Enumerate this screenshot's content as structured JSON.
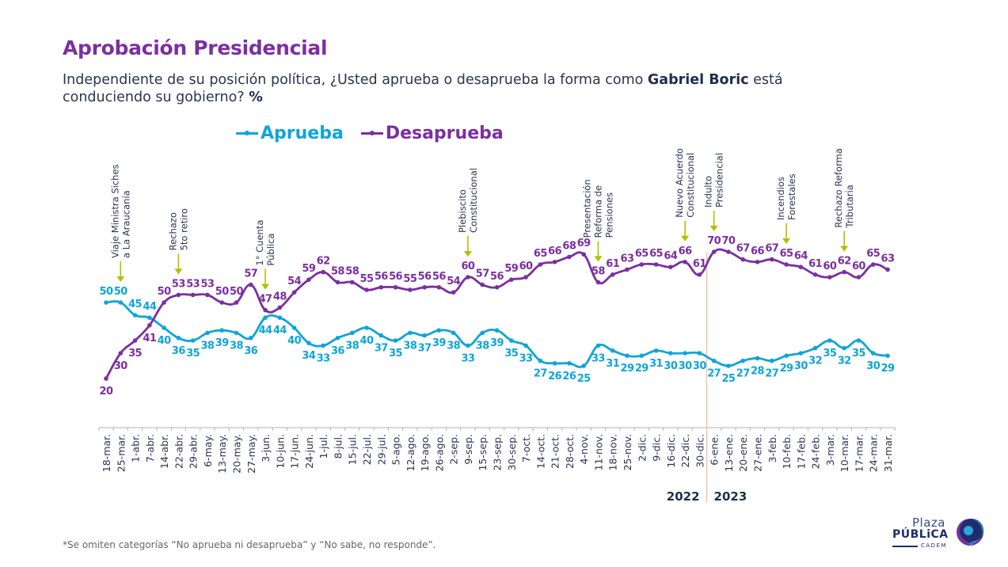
{
  "header": {
    "title": "Aprobación Presidencial",
    "question_part1": "Independiente de su posición política, ¿Usted aprueba o desaprueba la forma como ",
    "question_bold": "Gabriel Boric",
    "question_part2": " está conduciendo su gobierno? ",
    "question_unit": "%"
  },
  "footnote": "*Se omiten categorías “No aprueba ni desaprueba” y “No sabe, no responde”.",
  "logo": {
    "line1": "Plaza",
    "line2": "PÚBLiCA",
    "line3": "CADEM"
  },
  "colors": {
    "aprueba": "#0ea5d9",
    "desaprueba": "#7b2fa0",
    "event_arrow": "#b5bd00",
    "divider": "#f5b89a",
    "axis": "#b0b0b0",
    "year_label": "#1f2d52"
  },
  "chart_data": {
    "type": "line",
    "title": "Aprobación Presidencial",
    "xlabel": "",
    "ylabel": "%",
    "ylim": [
      0,
      80
    ],
    "grid": false,
    "legend_position": "top-center",
    "categories": [
      "18-mar.",
      "25-mar.",
      "1-abr.",
      "7-abr.",
      "14-abr.",
      "22-abr.",
      "29-abr.",
      "6-may.",
      "13-may.",
      "20-may.",
      "27-may.",
      "3-jun.",
      "10-jun.",
      "17-jun.",
      "24-jun.",
      "1-jul.",
      "8-jul.",
      "15-jul.",
      "22-jul.",
      "29-jul.",
      "5-ago.",
      "12-ago.",
      "19-ago.",
      "26-ago.",
      "2-sep.",
      "9-sep.",
      "15-sep.",
      "23-sep.",
      "30-sep.",
      "7-oct.",
      "14-oct.",
      "21-oct.",
      "28-oct.",
      "4-nov.",
      "11-nov.",
      "18-nov.",
      "25-nov.",
      "2-dic.",
      "9-dic.",
      "16-dic.",
      "22-dic.",
      "30-dic.",
      "6-ene.",
      "13-ene.",
      "20-ene.",
      "27-ene.",
      "3-feb.",
      "10-feb.",
      "17-feb.",
      "24-feb.",
      "3-mar.",
      "10-mar.",
      "17-mar.",
      "24-mar.",
      "31-mar."
    ],
    "series": [
      {
        "name": "Aprueba",
        "values": [
          50,
          50,
          45,
          44,
          40,
          36,
          35,
          38,
          39,
          38,
          36,
          44,
          44,
          40,
          34,
          33,
          36,
          38,
          40,
          37,
          35,
          38,
          37,
          39,
          38,
          33,
          38,
          39,
          35,
          33,
          27,
          26,
          26,
          25,
          33,
          31,
          29,
          29,
          31,
          30,
          30,
          30,
          27,
          25,
          27,
          28,
          27,
          29,
          30,
          32,
          35,
          32,
          35,
          30,
          29
        ]
      },
      {
        "name": "Desaprueba",
        "values": [
          20,
          30,
          35,
          41,
          50,
          53,
          53,
          53,
          50,
          50,
          57,
          47,
          48,
          54,
          59,
          62,
          58,
          58,
          55,
          56,
          56,
          55,
          56,
          56,
          54,
          60,
          57,
          56,
          59,
          60,
          65,
          66,
          68,
          69,
          58,
          61,
          63,
          65,
          65,
          64,
          66,
          61,
          70,
          70,
          67,
          66,
          67,
          65,
          64,
          61,
          60,
          62,
          60,
          65,
          63
        ]
      }
    ],
    "year_labels": [
      {
        "label": "2022",
        "span_end_index": 41
      },
      {
        "label": "2023",
        "span_start_index": 42
      }
    ],
    "annotations": [
      {
        "index": 1,
        "lines": [
          "Viaje Ministra Siches",
          "a La Araucanía"
        ]
      },
      {
        "index": 5,
        "lines": [
          "Rechazo",
          "5to retiro"
        ]
      },
      {
        "index": 11,
        "lines": [
          "1° Cuenta",
          "Pública"
        ]
      },
      {
        "index": 25,
        "lines": [
          "Plebiscito",
          "Constitucional"
        ]
      },
      {
        "index": 34,
        "lines": [
          "Presentación",
          "Reforma de",
          "Pensiones"
        ]
      },
      {
        "index": 40,
        "lines": [
          "Nuevo Acuerdo",
          "Constitucional"
        ]
      },
      {
        "index": 42,
        "lines": [
          "Indulto",
          "Presidencial"
        ]
      },
      {
        "index": 47,
        "lines": [
          "Incendios",
          "Forestales"
        ]
      },
      {
        "index": 51,
        "lines": [
          "Rechazo Reforma",
          "Tributaria"
        ]
      }
    ]
  }
}
